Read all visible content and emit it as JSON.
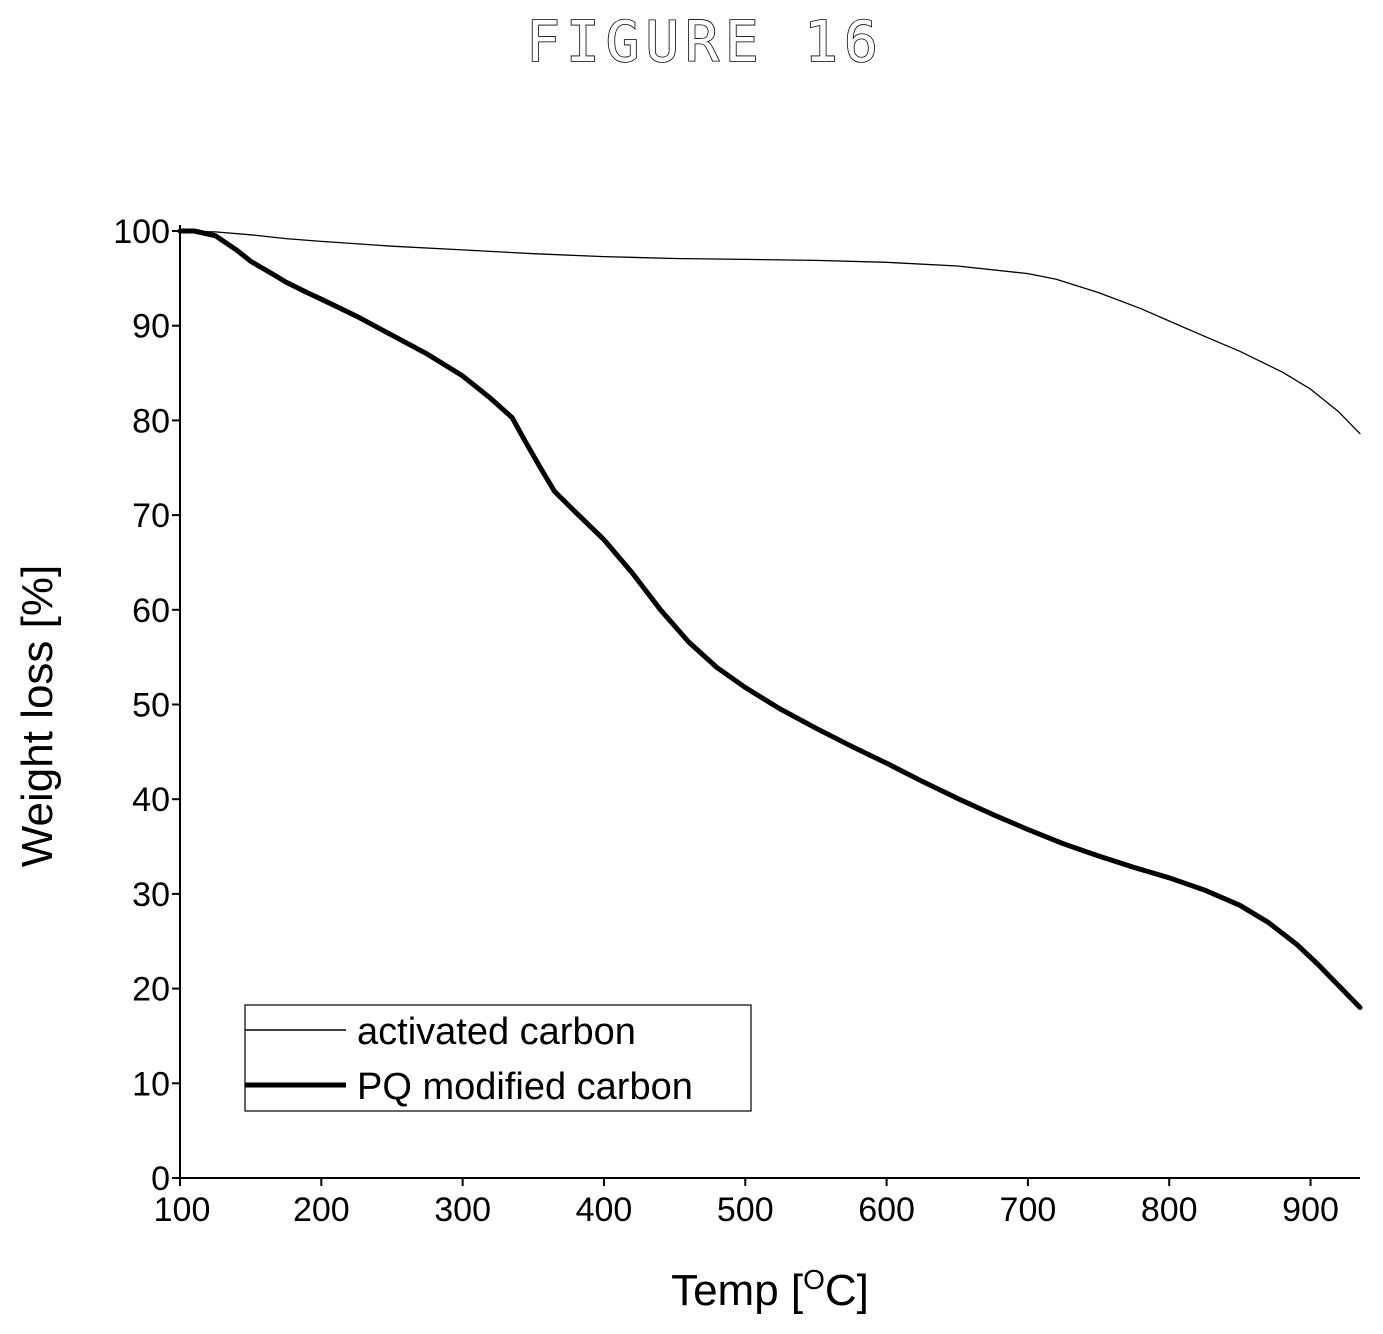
{
  "figure_label": "FIGURE 16",
  "chart_data": {
    "type": "line",
    "xlabel": "Temp [",
    "xlabel_sup": "O",
    "xlabel_end": "C]",
    "ylabel": "Weight loss [%]",
    "xlim": [
      100,
      935
    ],
    "ylim": [
      0,
      100
    ],
    "xticks": [
      100,
      200,
      300,
      400,
      500,
      600,
      700,
      800,
      900
    ],
    "yticks": [
      0,
      10,
      20,
      30,
      40,
      50,
      60,
      70,
      80,
      90,
      100
    ],
    "grid": false,
    "legend_position": "bottom-left",
    "series": [
      {
        "name": "activated carbon",
        "style": "thin",
        "color": "#000000",
        "x": [
          100,
          125,
          150,
          175,
          200,
          250,
          300,
          350,
          400,
          450,
          500,
          550,
          600,
          650,
          700,
          720,
          750,
          780,
          800,
          820,
          850,
          880,
          900,
          920,
          935
        ],
        "y": [
          100,
          99.9,
          99.6,
          99.2,
          98.9,
          98.4,
          98.0,
          97.6,
          97.3,
          97.1,
          97.0,
          96.9,
          96.7,
          96.3,
          95.5,
          94.9,
          93.5,
          91.8,
          90.5,
          89.2,
          87.3,
          85.1,
          83.3,
          80.9,
          78.6
        ]
      },
      {
        "name": "PQ modified carbon",
        "style": "thick",
        "color": "#000000",
        "x": [
          100,
          110,
          125,
          140,
          150,
          165,
          175,
          190,
          200,
          225,
          250,
          275,
          300,
          320,
          335,
          345,
          355,
          365,
          380,
          400,
          420,
          440,
          460,
          480,
          500,
          525,
          550,
          575,
          600,
          625,
          650,
          675,
          700,
          725,
          750,
          775,
          800,
          825,
          850,
          870,
          890,
          905,
          920,
          935
        ],
        "y": [
          100,
          100,
          99.5,
          98.0,
          96.8,
          95.5,
          94.6,
          93.5,
          92.8,
          91.0,
          89.0,
          87.0,
          84.7,
          82.3,
          80.3,
          77.6,
          75.0,
          72.5,
          70.3,
          67.4,
          63.9,
          60.0,
          56.6,
          53.9,
          51.8,
          49.5,
          47.5,
          45.6,
          43.8,
          41.9,
          40.1,
          38.4,
          36.8,
          35.3,
          34.0,
          32.8,
          31.7,
          30.4,
          28.8,
          27.0,
          24.7,
          22.6,
          20.3,
          18.0
        ]
      }
    ]
  }
}
